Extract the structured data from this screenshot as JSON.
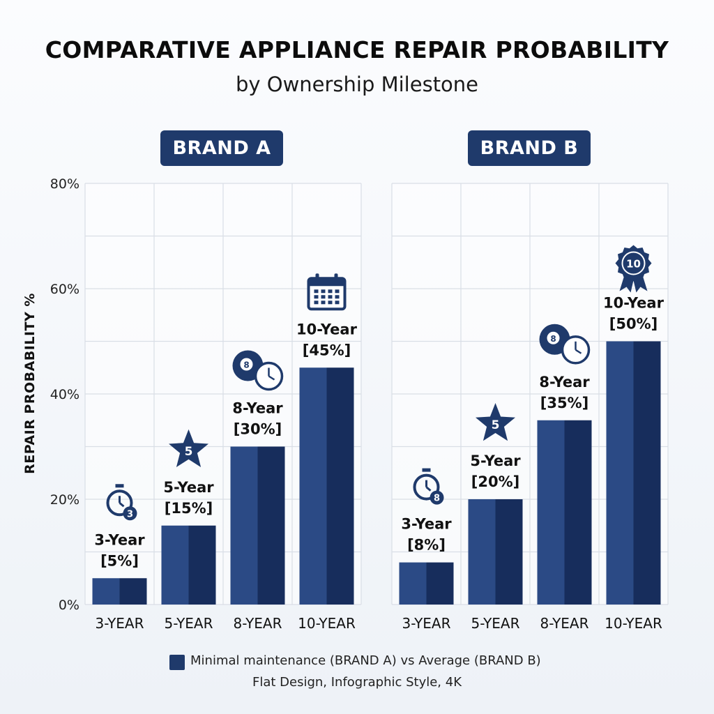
{
  "title": "COMPARATIVE APPLIANCE REPAIR PROBABILITY",
  "subtitle": "by Ownership Milestone",
  "legend": "Minimal maintenance (BRAND A) vs Average (BRAND B)",
  "footnote": "Flat Design, Infographic Style, 4K",
  "colors": {
    "bar_light": "#2b4a85",
    "bar_dark": "#172d5c",
    "badge": "#1f3a6b",
    "grid": "#d9dee6"
  },
  "chart_data": [
    {
      "type": "bar",
      "title": "BRAND A",
      "ylabel": "REPAIR PROBABILITY %",
      "ylim": [
        0,
        80
      ],
      "yticks": [
        "0%",
        "20%",
        "40%",
        "60%",
        "80%"
      ],
      "categories": [
        "3-YEAR",
        "5-YEAR",
        "8-YEAR",
        "10-YEAR"
      ],
      "values": [
        5,
        15,
        30,
        45
      ],
      "data_labels": [
        {
          "line1": "3-Year",
          "line2": "[5%]",
          "icon": "stopwatch-icon",
          "badge": "3"
        },
        {
          "line1": "5-Year",
          "line2": "[15%]",
          "icon": "star-icon",
          "badge": "5"
        },
        {
          "line1": "8-Year",
          "line2": "[30%]",
          "icon": "eight-ball-clock-icon",
          "badge": "8"
        },
        {
          "line1": "10-Year",
          "line2": "[45%]",
          "icon": "calendar-icon",
          "badge": ""
        }
      ],
      "grid": true
    },
    {
      "type": "bar",
      "title": "BRAND B",
      "ylim": [
        0,
        80
      ],
      "categories": [
        "3-YEAR",
        "5-YEAR",
        "8-YEAR",
        "10-YEAR"
      ],
      "values": [
        8,
        20,
        35,
        50
      ],
      "data_labels": [
        {
          "line1": "3-Year",
          "line2": "[8%]",
          "icon": "stopwatch-icon",
          "badge": "8"
        },
        {
          "line1": "5-Year",
          "line2": "[20%]",
          "icon": "star-icon",
          "badge": "5"
        },
        {
          "line1": "8-Year",
          "line2": "[35%]",
          "icon": "eight-ball-clock-icon",
          "badge": "8"
        },
        {
          "line1": "10-Year",
          "line2": "[50%]",
          "icon": "award-ribbon-icon",
          "badge": "10"
        }
      ],
      "grid": true
    }
  ]
}
